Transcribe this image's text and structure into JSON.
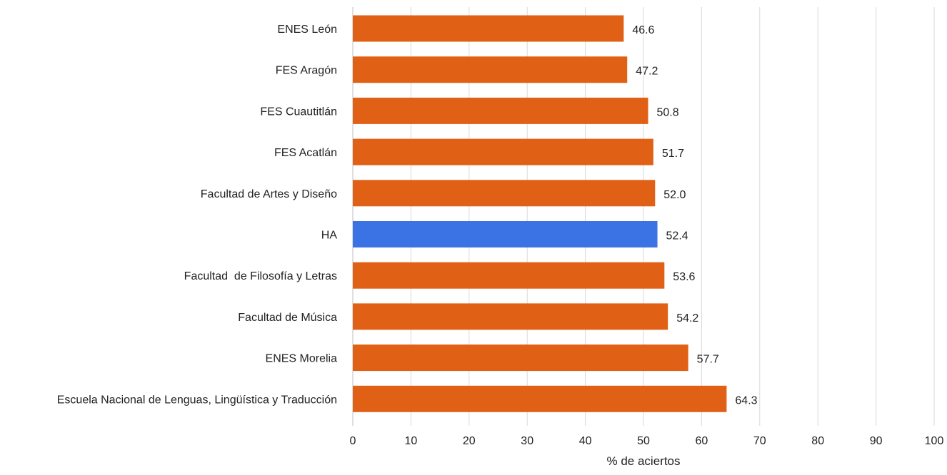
{
  "chart_data": {
    "type": "bar",
    "orientation": "horizontal",
    "title": "",
    "xlabel": "% de aciertos",
    "ylabel": "",
    "xlim": [
      0,
      100
    ],
    "xticks": [
      0,
      10,
      20,
      30,
      40,
      50,
      60,
      70,
      80,
      90,
      100
    ],
    "grid": "vertical",
    "categories": [
      "ENES León",
      "FES Aragón",
      "FES Cuautitlán",
      "FES Acatlán",
      "Facultad de Artes y Diseño",
      "HA",
      "Facultad  de Filosofía y Letras",
      "Facultad de Música",
      "ENES Morelia",
      "Escuela Nacional de Lenguas, Lingüística y Traducción"
    ],
    "values": [
      46.6,
      47.2,
      50.8,
      51.7,
      52.0,
      52.4,
      53.6,
      54.2,
      57.7,
      64.3
    ],
    "value_labels": [
      "46.6",
      "47.2",
      "50.8",
      "51.7",
      "52.0",
      "52.4",
      "53.6",
      "54.2",
      "57.7",
      "64.3"
    ],
    "highlight_category": "HA",
    "colors": {
      "bar": "#E06016",
      "highlight": "#3C73E4",
      "grid": "#D9D9D9",
      "axis": "#BFBFBF",
      "text": "#222222"
    }
  }
}
